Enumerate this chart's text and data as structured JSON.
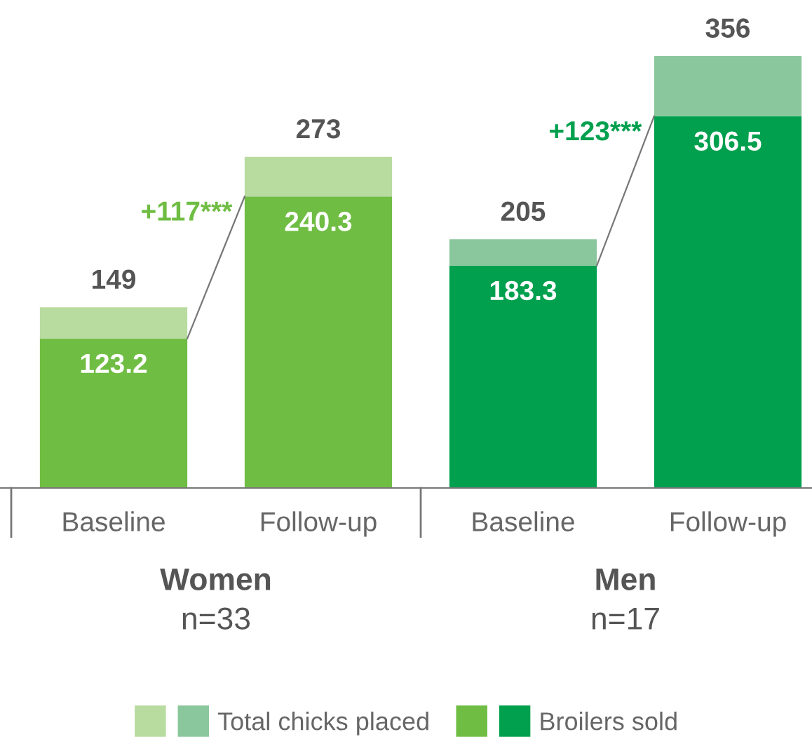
{
  "chart_data": {
    "type": "bar",
    "stacked": true,
    "categories": [
      "Baseline",
      "Follow-up",
      "Baseline",
      "Follow-up"
    ],
    "series": [
      {
        "name": "Broilers sold",
        "colors": [
          "#70bd44",
          "#70bd44",
          "#00a04e",
          "#00a04e"
        ],
        "values": [
          123.2,
          240.3,
          183.3,
          306.5
        ],
        "value_labels": [
          "123.2",
          "240.3",
          "183.3",
          "306.5"
        ]
      },
      {
        "name": "Total chicks placed",
        "colors": [
          "#b8dba0",
          "#b8dba0",
          "#8bc79c",
          "#8bc79c"
        ],
        "values": [
          25.8,
          32.7,
          21.7,
          49.5
        ]
      }
    ],
    "totals": [
      "149",
      "273",
      "205",
      "356"
    ],
    "annotations": [
      "+117***",
      "+123***",
      "Women",
      "n=33",
      "Men",
      "n=17"
    ],
    "legend": "bottom",
    "grid": false
  }
}
